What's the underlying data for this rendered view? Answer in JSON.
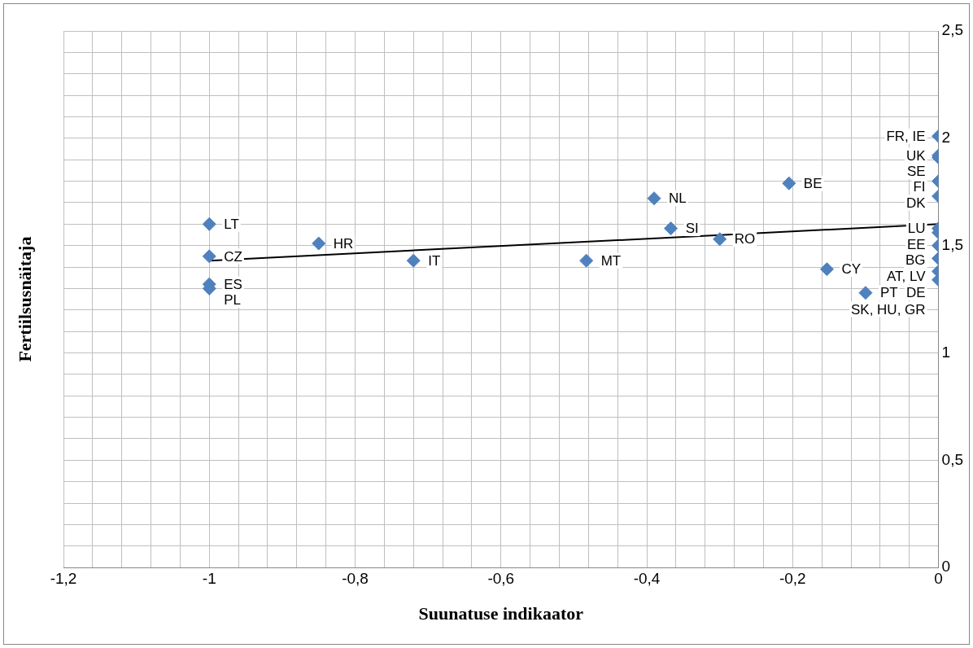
{
  "chart_data": {
    "type": "scatter",
    "xlabel": "Suunatuse indikaator",
    "ylabel": "Fertiilsusnäitaja",
    "series": [
      {
        "color": "#4f81bd",
        "x": [
          -1,
          -1,
          -1,
          -1,
          -0.85,
          -0.72,
          -0.483,
          -0.39,
          -0.367,
          -0.3,
          -0.205,
          -0.153,
          -0.1,
          0,
          0,
          0,
          0,
          0,
          0,
          0,
          0,
          0,
          0,
          0
        ],
        "values": [
          1.6,
          1.45,
          1.32,
          1.3,
          1.51,
          1.43,
          1.43,
          1.72,
          1.58,
          1.53,
          1.79,
          1.39,
          1.28,
          2.01,
          1.92,
          1.91,
          1.8,
          1.73,
          1.58,
          1.56,
          1.5,
          1.44,
          1.38,
          1.34
        ]
      },
      {
        "type": "line",
        "color": "#000000",
        "marker": "none",
        "x": [
          -1,
          0
        ],
        "values": [
          1.43,
          1.6
        ]
      }
    ],
    "annotations": [
      {
        "text": "LT",
        "x": -1,
        "y": 1.6
      },
      {
        "text": "CZ",
        "x": -1,
        "y": 1.45
      },
      {
        "text": "ES",
        "x": -1,
        "y": 1.32
      },
      {
        "text": "PL",
        "x": -1,
        "y": 1.3
      },
      {
        "text": "HR",
        "x": -0.85,
        "y": 1.51
      },
      {
        "text": "IT",
        "x": -0.72,
        "y": 1.43
      },
      {
        "text": "MT",
        "x": -0.483,
        "y": 1.43
      },
      {
        "text": "NL",
        "x": -0.39,
        "y": 1.72
      },
      {
        "text": "SI",
        "x": -0.367,
        "y": 1.58
      },
      {
        "text": "RO",
        "x": -0.3,
        "y": 1.53
      },
      {
        "text": "BE",
        "x": -0.205,
        "y": 1.79
      },
      {
        "text": "CY",
        "x": -0.153,
        "y": 1.39
      },
      {
        "text": "PT",
        "x": -0.1,
        "y": 1.28
      },
      {
        "text": "FR, IE",
        "x": 0,
        "y": 2.01
      },
      {
        "text": "UK",
        "x": 0,
        "y": 1.92
      },
      {
        "text": "SE",
        "x": 0,
        "y": 1.91
      },
      {
        "text": "FI",
        "x": 0,
        "y": 1.8
      },
      {
        "text": "DK",
        "x": 0,
        "y": 1.73
      },
      {
        "text": "LU",
        "x": 0,
        "y": 1.58
      },
      {
        "text": "EE",
        "x": 0,
        "y": 1.56
      },
      {
        "text": "BG",
        "x": 0,
        "y": 1.5
      },
      {
        "text": "AT, LV",
        "x": 0,
        "y": 1.44
      },
      {
        "text": "DE",
        "x": 0,
        "y": 1.38
      },
      {
        "text": "SK, HU, GR",
        "x": 0,
        "y": 1.34
      }
    ],
    "xlim": [
      -1.2,
      0
    ],
    "ylim": [
      0,
      2.5
    ],
    "xticks": [
      {
        "value": -1.2,
        "label": "-1,2"
      },
      {
        "value": -1.16,
        "label": null
      },
      {
        "value": -1.12,
        "label": null
      },
      {
        "value": -1.08,
        "label": null
      },
      {
        "value": -1.04,
        "label": null
      },
      -1,
      {
        "value": -0.96,
        "label": null
      },
      {
        "value": -0.92,
        "label": null
      },
      {
        "value": -0.88,
        "label": null
      },
      {
        "value": -0.84,
        "label": null
      },
      {
        "value": -0.8,
        "label": "-0,8"
      },
      {
        "value": -0.76,
        "label": null
      },
      {
        "value": -0.72,
        "label": null
      },
      {
        "value": -0.68,
        "label": null
      },
      {
        "value": -0.64,
        "label": null
      },
      {
        "value": -0.6,
        "label": "-0,6"
      },
      {
        "value": -0.56,
        "label": null
      },
      {
        "value": -0.52,
        "label": null
      },
      {
        "value": -0.48,
        "label": null
      },
      {
        "value": -0.44,
        "label": null
      },
      {
        "value": -0.4,
        "label": "-0,4"
      },
      {
        "value": -0.36,
        "label": null
      },
      {
        "value": -0.32,
        "label": null
      },
      {
        "value": -0.28,
        "label": null
      },
      {
        "value": -0.24,
        "label": null
      },
      {
        "value": -0.2,
        "label": "-0,2"
      },
      {
        "value": -0.16,
        "label": null
      },
      {
        "value": -0.12,
        "label": null
      },
      {
        "value": -0.08,
        "label": null
      },
      {
        "value": -0.04,
        "label": null
      },
      0
    ],
    "yticks": [
      0,
      {
        "value": 0.1,
        "label": null
      },
      {
        "value": 0.2,
        "label": null
      },
      {
        "value": 0.3,
        "label": null
      },
      {
        "value": 0.4,
        "label": null
      },
      {
        "value": 0.5,
        "label": "0,5"
      },
      {
        "value": 0.6,
        "label": null
      },
      {
        "value": 0.7,
        "label": null
      },
      {
        "value": 0.8,
        "label": null
      },
      {
        "value": 0.9,
        "label": null
      },
      1,
      {
        "value": 1.1,
        "label": null
      },
      {
        "value": 1.2,
        "label": null
      },
      {
        "value": 1.3,
        "label": null
      },
      {
        "value": 1.4,
        "label": null
      },
      {
        "value": 1.5,
        "label": "1,5"
      },
      {
        "value": 1.6,
        "label": null
      },
      {
        "value": 1.7,
        "label": null
      },
      {
        "value": 1.8,
        "label": null
      },
      {
        "value": 1.9,
        "label": null
      },
      2,
      {
        "value": 2.1,
        "label": null
      },
      {
        "value": 2.2,
        "label": null
      },
      {
        "value": 2.3,
        "label": null
      },
      {
        "value": 2.4,
        "label": null
      },
      {
        "value": 2.5,
        "label": "2,5"
      }
    ],
    "grid": true,
    "marker": "diamond",
    "legend": false
  }
}
